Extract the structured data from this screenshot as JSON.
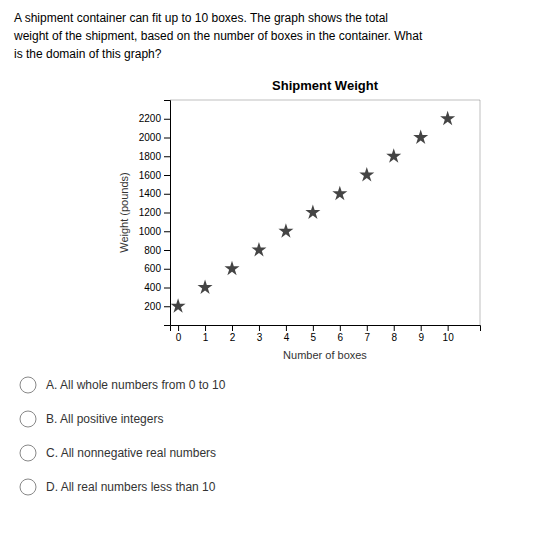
{
  "chart_data": {
    "type": "scatter",
    "title": "Shipment Weight",
    "xlabel": "Number of boxes",
    "ylabel": "Weight (pounds)",
    "annotations": {
      "question": [
        "A shipment container can fit up to 10 boxes. The graph shows the total",
        "weight of the shipment, based on the number of boxes in the container. What",
        "is the domain of this graph?"
      ],
      "choices": [
        "A.  All whole numbers from 0 to 10",
        "B.  All positive integers",
        "C.  All nonnegative real numbers",
        "D.  All real numbers less than 10"
      ]
    },
    "x": [
      0,
      1,
      2,
      3,
      4,
      5,
      6,
      7,
      8,
      9,
      10
    ],
    "values": [
      200,
      400,
      600,
      800,
      1000,
      1200,
      1400,
      1600,
      1800,
      2000,
      2200
    ],
    "color": "#444444",
    "marker": "star",
    "xlim": [
      -0.3,
      11.2
    ],
    "ylim": [
      0,
      2400
    ],
    "xticks": [
      0,
      1,
      2,
      3,
      4,
      5,
      6,
      7,
      8,
      9,
      10
    ],
    "yticks": [
      200,
      400,
      600,
      800,
      1000,
      1200,
      1400,
      1600,
      1800,
      2000,
      2200
    ],
    "grid": false
  }
}
